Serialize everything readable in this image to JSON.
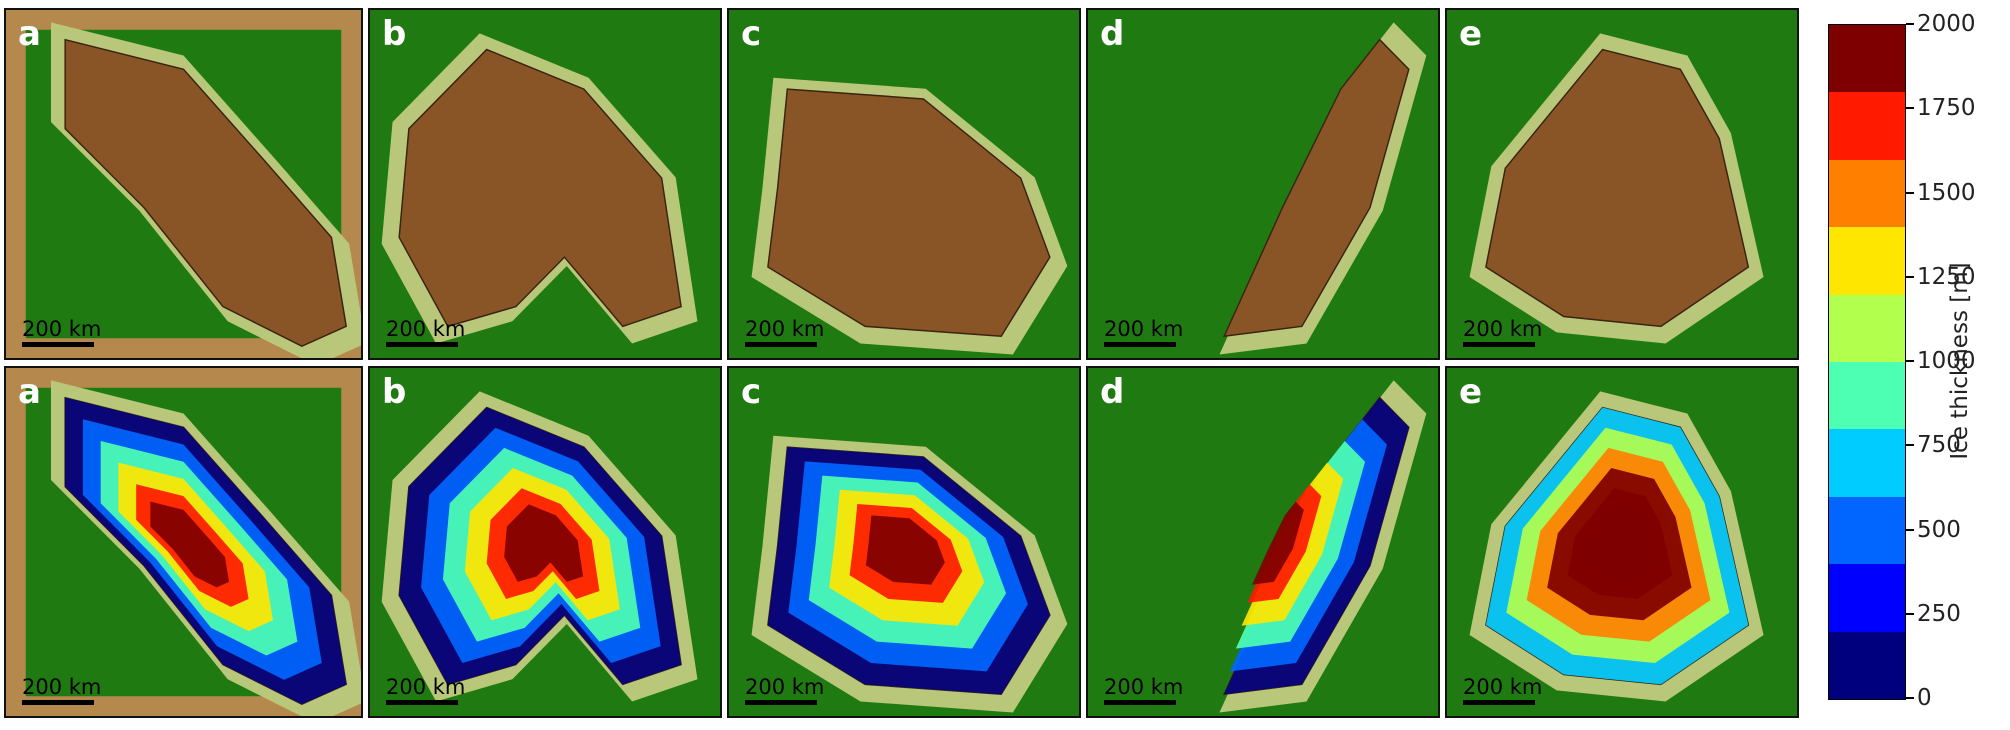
{
  "panels": {
    "top": [
      {
        "label": "a",
        "scale": "200 km",
        "land": "#7a4a22",
        "bg": "#1f7a12"
      },
      {
        "label": "b",
        "scale": "200 km",
        "land": "#8a5a2a",
        "bg": "#1f7a12"
      },
      {
        "label": "c",
        "scale": "200 km",
        "land": "#7a4a22",
        "bg": "#1f7a12"
      },
      {
        "label": "d",
        "scale": "200 km",
        "land": "#7a4a22",
        "bg": "#1f7a12"
      },
      {
        "label": "e",
        "scale": "200 km",
        "land": "#7a4a22",
        "bg": "#1f7a12"
      }
    ],
    "bottom": [
      {
        "label": "a",
        "scale": "200 km"
      },
      {
        "label": "b",
        "scale": "200 km"
      },
      {
        "label": "c",
        "scale": "200 km"
      },
      {
        "label": "d",
        "scale": "200 km"
      },
      {
        "label": "e",
        "scale": "200 km"
      }
    ]
  },
  "colorbar": {
    "title": "Ice thickness [m]",
    "ticks": [
      "2000",
      "1750",
      "1500",
      "1250",
      "1000",
      "750",
      "500",
      "250",
      "0"
    ],
    "colors": [
      "#7f0000",
      "#ff1a00",
      "#ff8000",
      "#ffe600",
      "#b3ff4d",
      "#4dffb3",
      "#00ccff",
      "#0066ff",
      "#0000ff",
      "#00007f"
    ]
  }
}
